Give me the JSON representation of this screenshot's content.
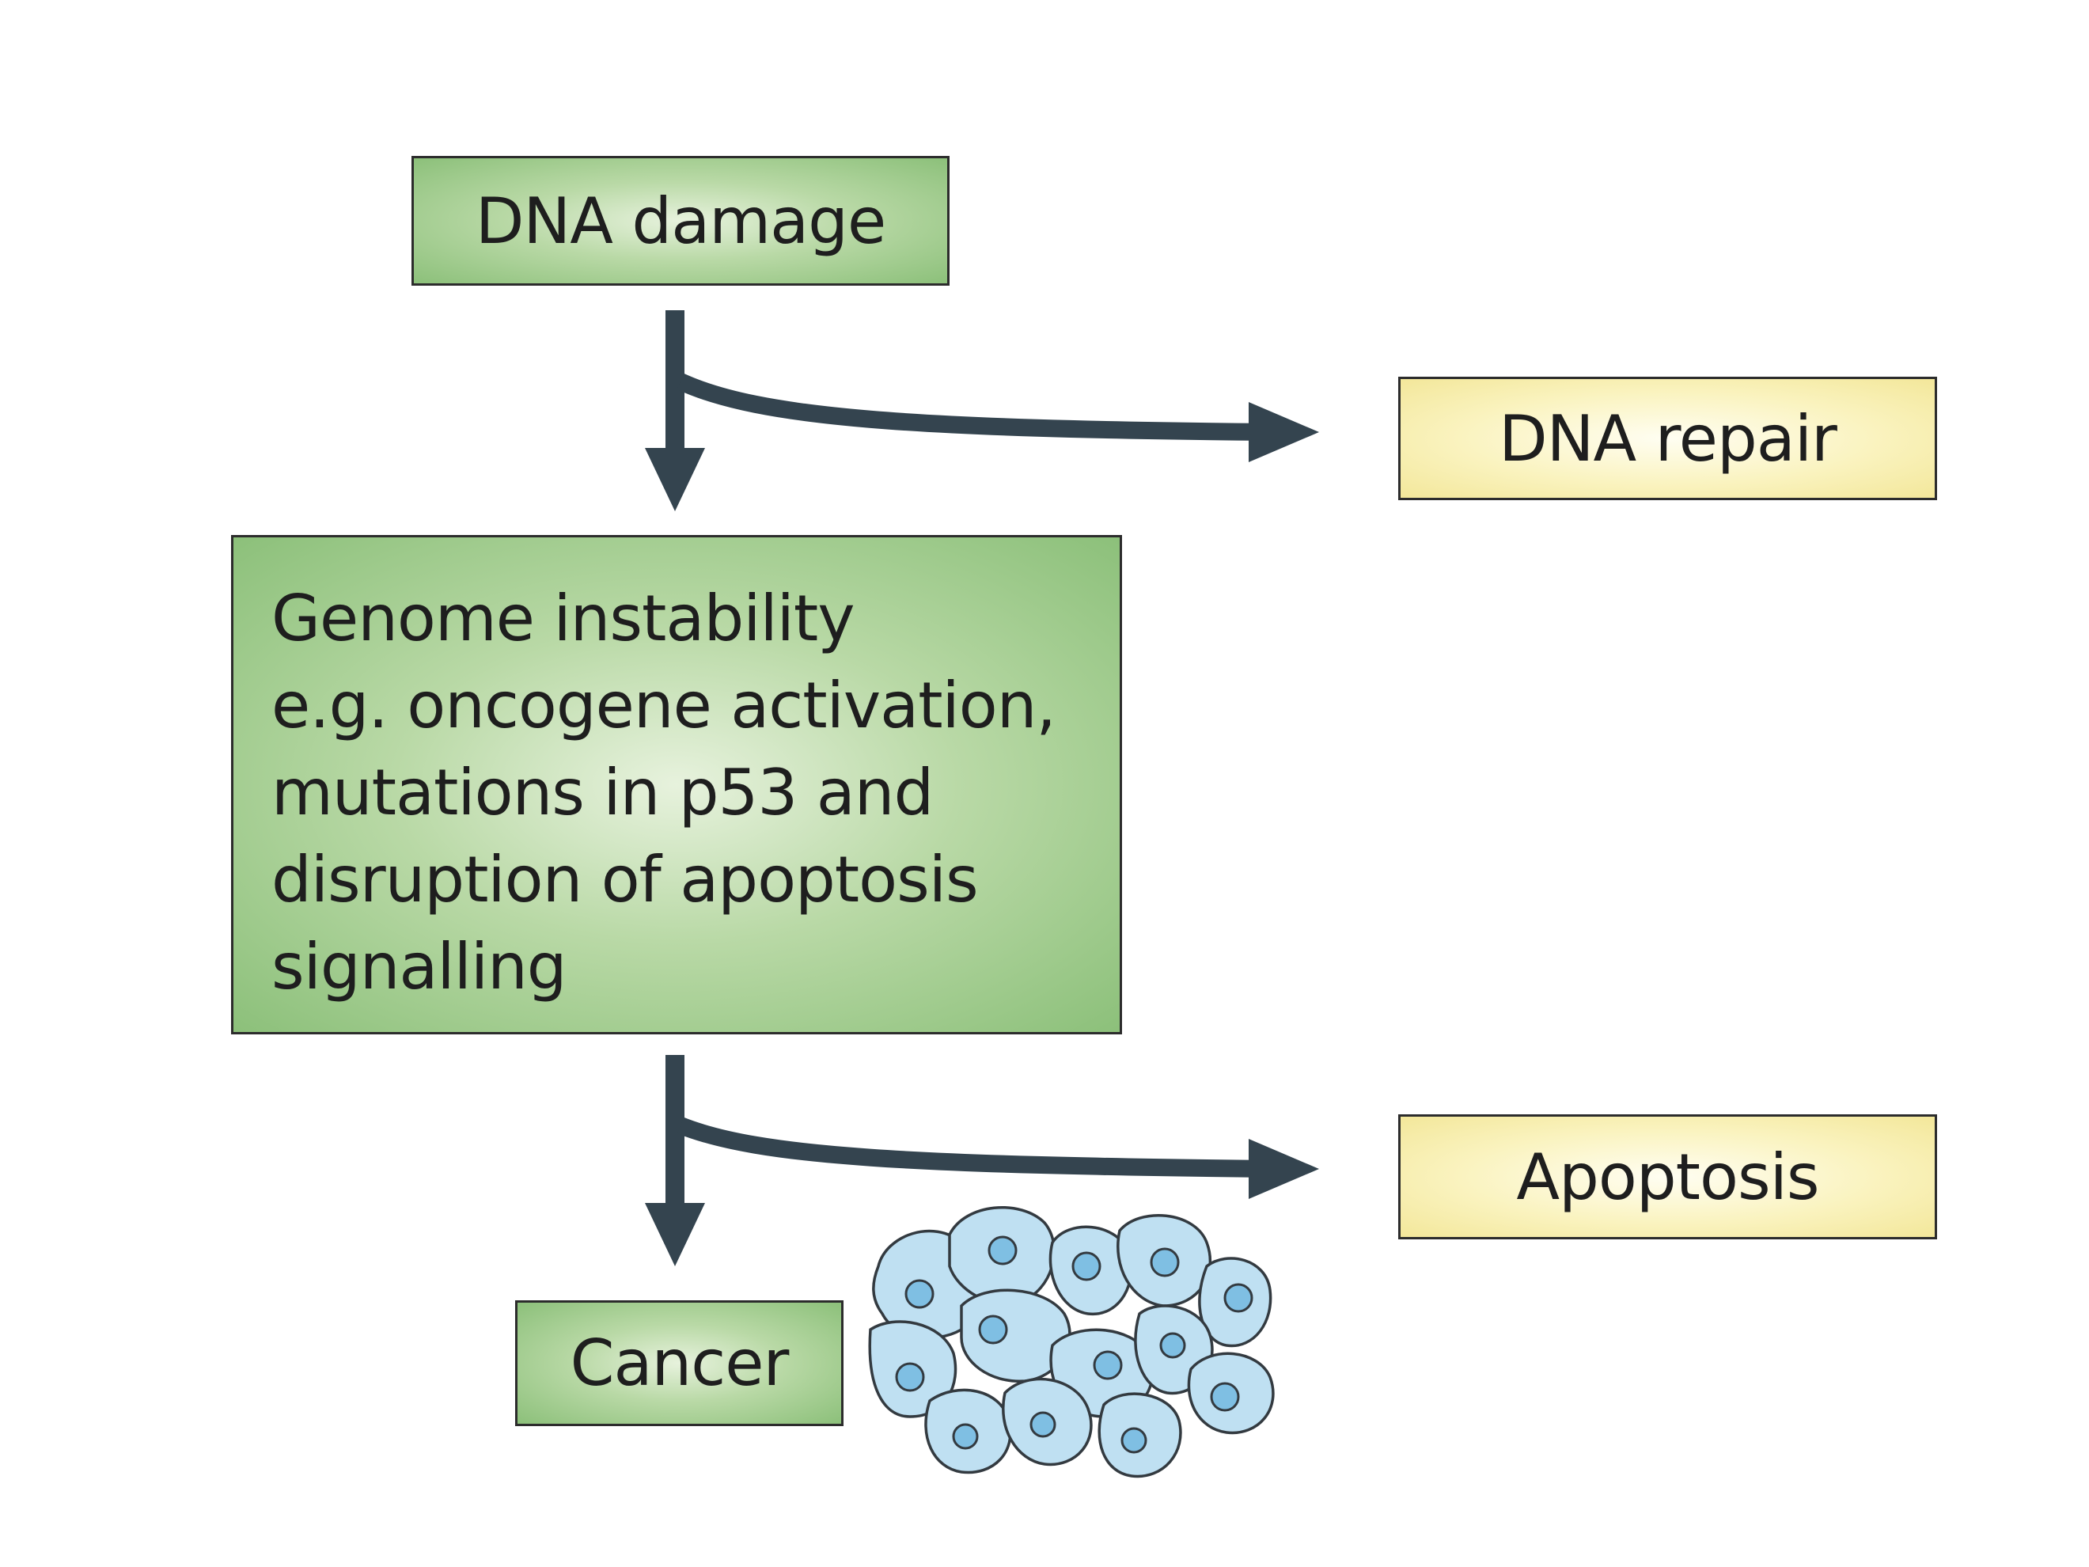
{
  "diagram": {
    "nodes": {
      "dna_damage": "DNA damage",
      "dna_repair": "DNA repair",
      "genome_instability": {
        "lines": [
          "Genome instability",
          "e.g. oncogene activation,",
          "mutations in p53 and",
          "disruption of apoptosis",
          "signalling"
        ]
      },
      "apoptosis": "Apoptosis",
      "cancer": "Cancer"
    },
    "edges": [
      {
        "from": "dna_damage",
        "to": "genome_instability"
      },
      {
        "from": "dna_damage",
        "to": "dna_repair"
      },
      {
        "from": "genome_instability",
        "to": "cancer"
      },
      {
        "from": "genome_instability",
        "to": "apoptosis"
      }
    ],
    "colors": {
      "primary_box": "#a6cf91",
      "secondary_box": "#f8efb0",
      "arrow": "#34444f",
      "cell_fill": "#bfe0f2",
      "cell_nucleus": "#7fbfe3"
    },
    "illustration": "cancer-cell-cluster"
  }
}
